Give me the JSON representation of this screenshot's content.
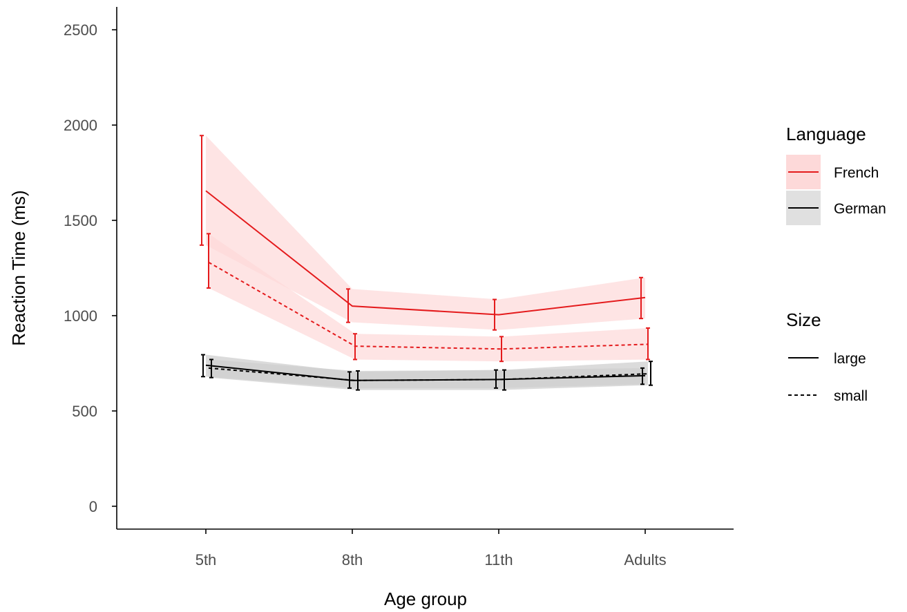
{
  "chart_data": {
    "type": "line",
    "xlabel": "Age group",
    "ylabel": "Reaction Time (ms)",
    "categories": [
      "5th",
      "8th",
      "11th",
      "Adults"
    ],
    "ylim": [
      -120,
      2620
    ],
    "yticks": [
      0,
      500,
      1000,
      1500,
      2000,
      2500
    ],
    "grid": false,
    "series": [
      {
        "language": "French",
        "size": "large",
        "color": "#e41a1c",
        "dash": "solid",
        "values": [
          1655,
          1050,
          1005,
          1095
        ],
        "ci_low": [
          1370,
          965,
          925,
          985
        ],
        "ci_high": [
          1945,
          1140,
          1085,
          1200
        ]
      },
      {
        "language": "French",
        "size": "small",
        "color": "#e41a1c",
        "dash": "dashed",
        "values": [
          1280,
          840,
          825,
          850
        ],
        "ci_low": [
          1145,
          770,
          760,
          770
        ],
        "ci_high": [
          1430,
          905,
          890,
          935
        ]
      },
      {
        "language": "German",
        "size": "large",
        "color": "#000000",
        "dash": "solid",
        "values": [
          740,
          660,
          665,
          685
        ],
        "ci_low": [
          680,
          620,
          620,
          640
        ],
        "ci_high": [
          795,
          705,
          715,
          725
        ]
      },
      {
        "language": "German",
        "size": "small",
        "color": "#000000",
        "dash": "dashed",
        "values": [
          725,
          660,
          665,
          695
        ],
        "ci_low": [
          675,
          610,
          610,
          635
        ],
        "ci_high": [
          770,
          710,
          715,
          760
        ]
      }
    ],
    "ribbon_colors": {
      "French": "#fdd9d9",
      "German": "#cfcfcf"
    },
    "legend": {
      "placement": "right",
      "language_title": "Language",
      "language_items": [
        {
          "label": "French",
          "color": "#e41a1c"
        },
        {
          "label": "German",
          "color": "#000000"
        }
      ],
      "size_title": "Size",
      "size_items": [
        {
          "label": "large",
          "dash": "solid"
        },
        {
          "label": "small",
          "dash": "dashed"
        }
      ]
    }
  }
}
